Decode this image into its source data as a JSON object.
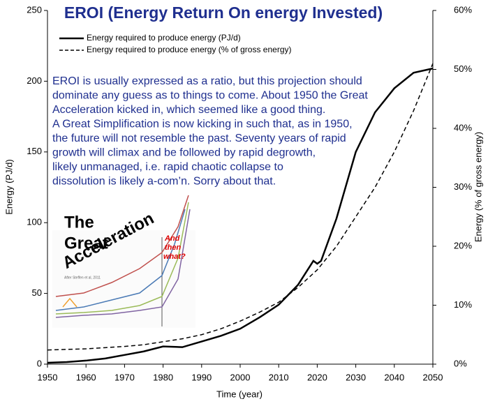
{
  "chart_data": {
    "type": "line",
    "title": "EROI (Energy Return On energy Invested)",
    "x_label": "Time (year)",
    "y_label": "Energy (PJ/d)",
    "y2_label": "Energy  (% of  gross energy)",
    "x": [
      1950,
      1955,
      1960,
      1965,
      1970,
      1975,
      1980,
      1985,
      1990,
      1995,
      2000,
      2005,
      2010,
      2015,
      2019,
      2020,
      2021,
      2025,
      2030,
      2035,
      2040,
      2045,
      2050
    ],
    "series": [
      {
        "name": "Energy required to produce energy (PJ/d)",
        "color": "#000000",
        "dash": false,
        "values": [
          1,
          1.5,
          2.5,
          4,
          6.5,
          9,
          12.5,
          12,
          16,
          20,
          25,
          33,
          42,
          56,
          73,
          71,
          73,
          103,
          150,
          178,
          195,
          206,
          209
        ]
      },
      {
        "name": "Energy required to produce energy (% of gross energy)",
        "color": "#000000",
        "dash": true,
        "axis": "y2",
        "values": [
          2.4,
          2.5,
          2.6,
          2.8,
          3.0,
          3.3,
          3.8,
          4.3,
          5,
          6,
          7.3,
          8.8,
          10.5,
          13,
          15.4,
          16,
          16.8,
          20,
          25,
          30,
          36,
          43,
          51
        ]
      }
    ],
    "xlim": [
      1950,
      2050
    ],
    "xticks": [
      1950,
      1960,
      1970,
      1980,
      1990,
      2000,
      2010,
      2020,
      2030,
      2040,
      2050
    ],
    "ylim": [
      0,
      250
    ],
    "yticks": [
      0,
      50,
      100,
      150,
      200,
      250
    ],
    "y2lim": [
      0,
      60
    ],
    "y2ticks": [
      {
        "value": 0,
        "label": "0%"
      },
      {
        "value": 10,
        "label": "10%"
      },
      {
        "value": 20,
        "label": "20%"
      },
      {
        "value": 30,
        "label": "30%"
      },
      {
        "value": 40,
        "label": "40%"
      },
      {
        "value": 50,
        "label": "50%"
      },
      {
        "value": 60,
        "label": "60%"
      }
    ],
    "grid": false,
    "text_block": [
      "EROI is usually expressed as a ratio, but this projection should",
      "dominate any guess as to things to come. About 1950 the Great",
      "Acceleration kicked in, which seemed like a good thing.",
      "A Great Simplification is now kicking in such that, as in 1950,",
      "the future will not resemble the past. Seventy years of rapid",
      "growth will climax and be followed by rapid degrowth,",
      "likely unmanaged, i.e. rapid chaotic collapse to",
      "dissolution is likely a-com’n. Sorry about that."
    ],
    "inset": {
      "title_lines": [
        "The",
        "Great",
        "Acceleration"
      ],
      "question_lines": [
        "And",
        "then",
        "what?"
      ],
      "credit": "After Steffen et al, 2011"
    }
  }
}
